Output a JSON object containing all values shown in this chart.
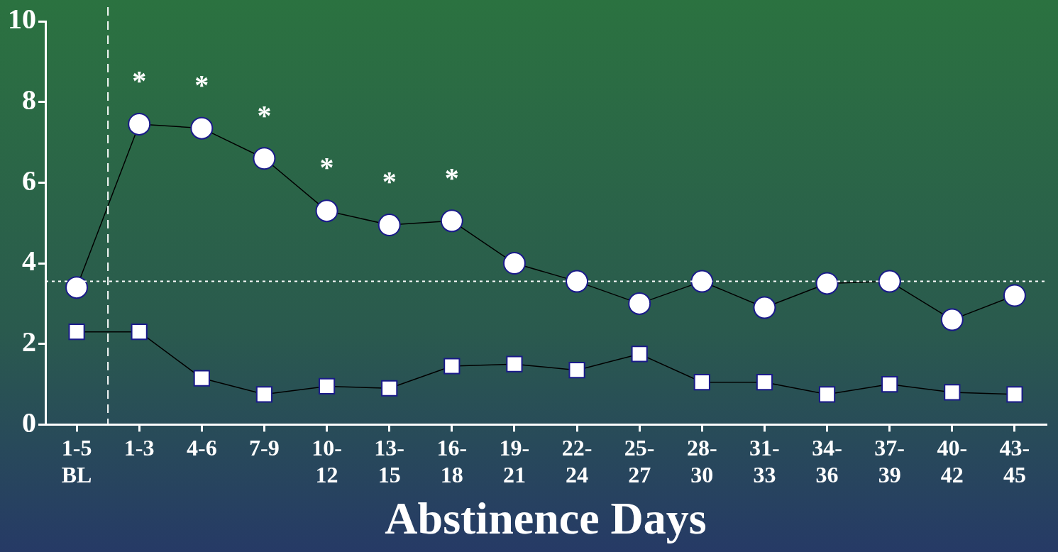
{
  "chart_data": {
    "type": "line",
    "xlabel": "Abstinence Days",
    "categories": [
      "1-5\nBL",
      "1-3",
      "4-6",
      "7-9",
      "10-\n12",
      "13-\n15",
      "16-\n18",
      "19-\n21",
      "22-\n24",
      "25-\n27",
      "28-\n30",
      "31-\n33",
      "34-\n36",
      "37-\n39",
      "40-\n42",
      "43-\n45"
    ],
    "series": [
      {
        "color": "#ffffff",
        "marker": "circle",
        "values": [
          3.4,
          7.45,
          7.35,
          6.6,
          5.3,
          4.95,
          5.05,
          4.0,
          3.55,
          3.0,
          3.55,
          2.9,
          3.5,
          3.55,
          2.6,
          3.2
        ]
      },
      {
        "color": "#ffffff",
        "marker": "square",
        "values": [
          2.3,
          2.3,
          1.15,
          0.75,
          0.95,
          0.9,
          1.45,
          1.5,
          1.35,
          1.75,
          1.05,
          1.05,
          0.75,
          1.0,
          0.8,
          0.75
        ]
      }
    ],
    "ylim": [
      0,
      10
    ],
    "yticks": [
      0,
      2,
      4,
      6,
      8,
      10
    ],
    "grid": false,
    "ref_lines": [
      {
        "axis": "y",
        "value": 3.55,
        "color": "#ffffff",
        "line_style": "dotted"
      }
    ],
    "annotations": [
      {
        "text": "*",
        "x": "1-3",
        "y": 7.45
      },
      {
        "text": "*",
        "x": "4-6",
        "y": 7.35
      },
      {
        "text": "*",
        "x": "7-9",
        "y": 6.6
      },
      {
        "text": "*",
        "x": "10-\n12",
        "y": 5.3
      },
      {
        "text": "*",
        "x": "13-\n15",
        "y": 4.95
      },
      {
        "text": "*",
        "x": "16-\n18",
        "y": 5.05
      }
    ]
  }
}
